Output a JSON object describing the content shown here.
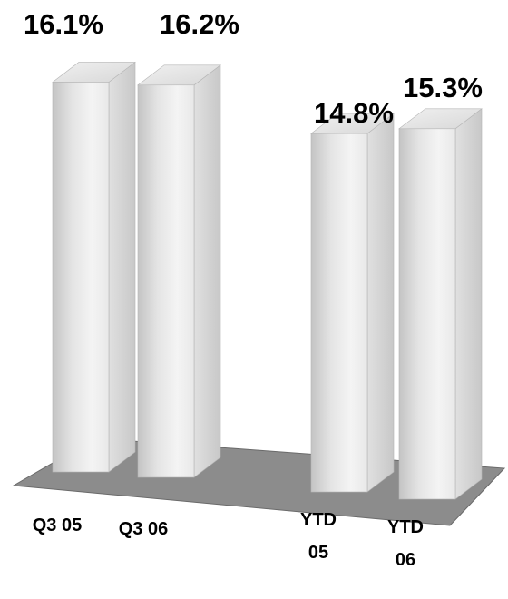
{
  "chart_data": {
    "type": "bar",
    "title": "",
    "xlabel": "",
    "ylabel": "",
    "categories": [
      [
        "Q3 05"
      ],
      [
        "Q3 06"
      ],
      [
        "YTD",
        "05"
      ],
      [
        "YTD",
        "06"
      ]
    ],
    "values": [
      16.1,
      16.2,
      14.8,
      15.3
    ],
    "value_labels": [
      "16.1%",
      "16.2%",
      "14.8%",
      "15.3%"
    ],
    "gridlines": false,
    "legend": "none",
    "style": "3d-column",
    "colors": {
      "bar_front_light": "#f2f2f2",
      "bar_front_dark": "#c4c4c4",
      "bar_side": "#d2d2d2",
      "bar_top": "#e6e6e6",
      "floor": "#8c8c8c",
      "floor_edge": "#6a6a6a"
    }
  }
}
